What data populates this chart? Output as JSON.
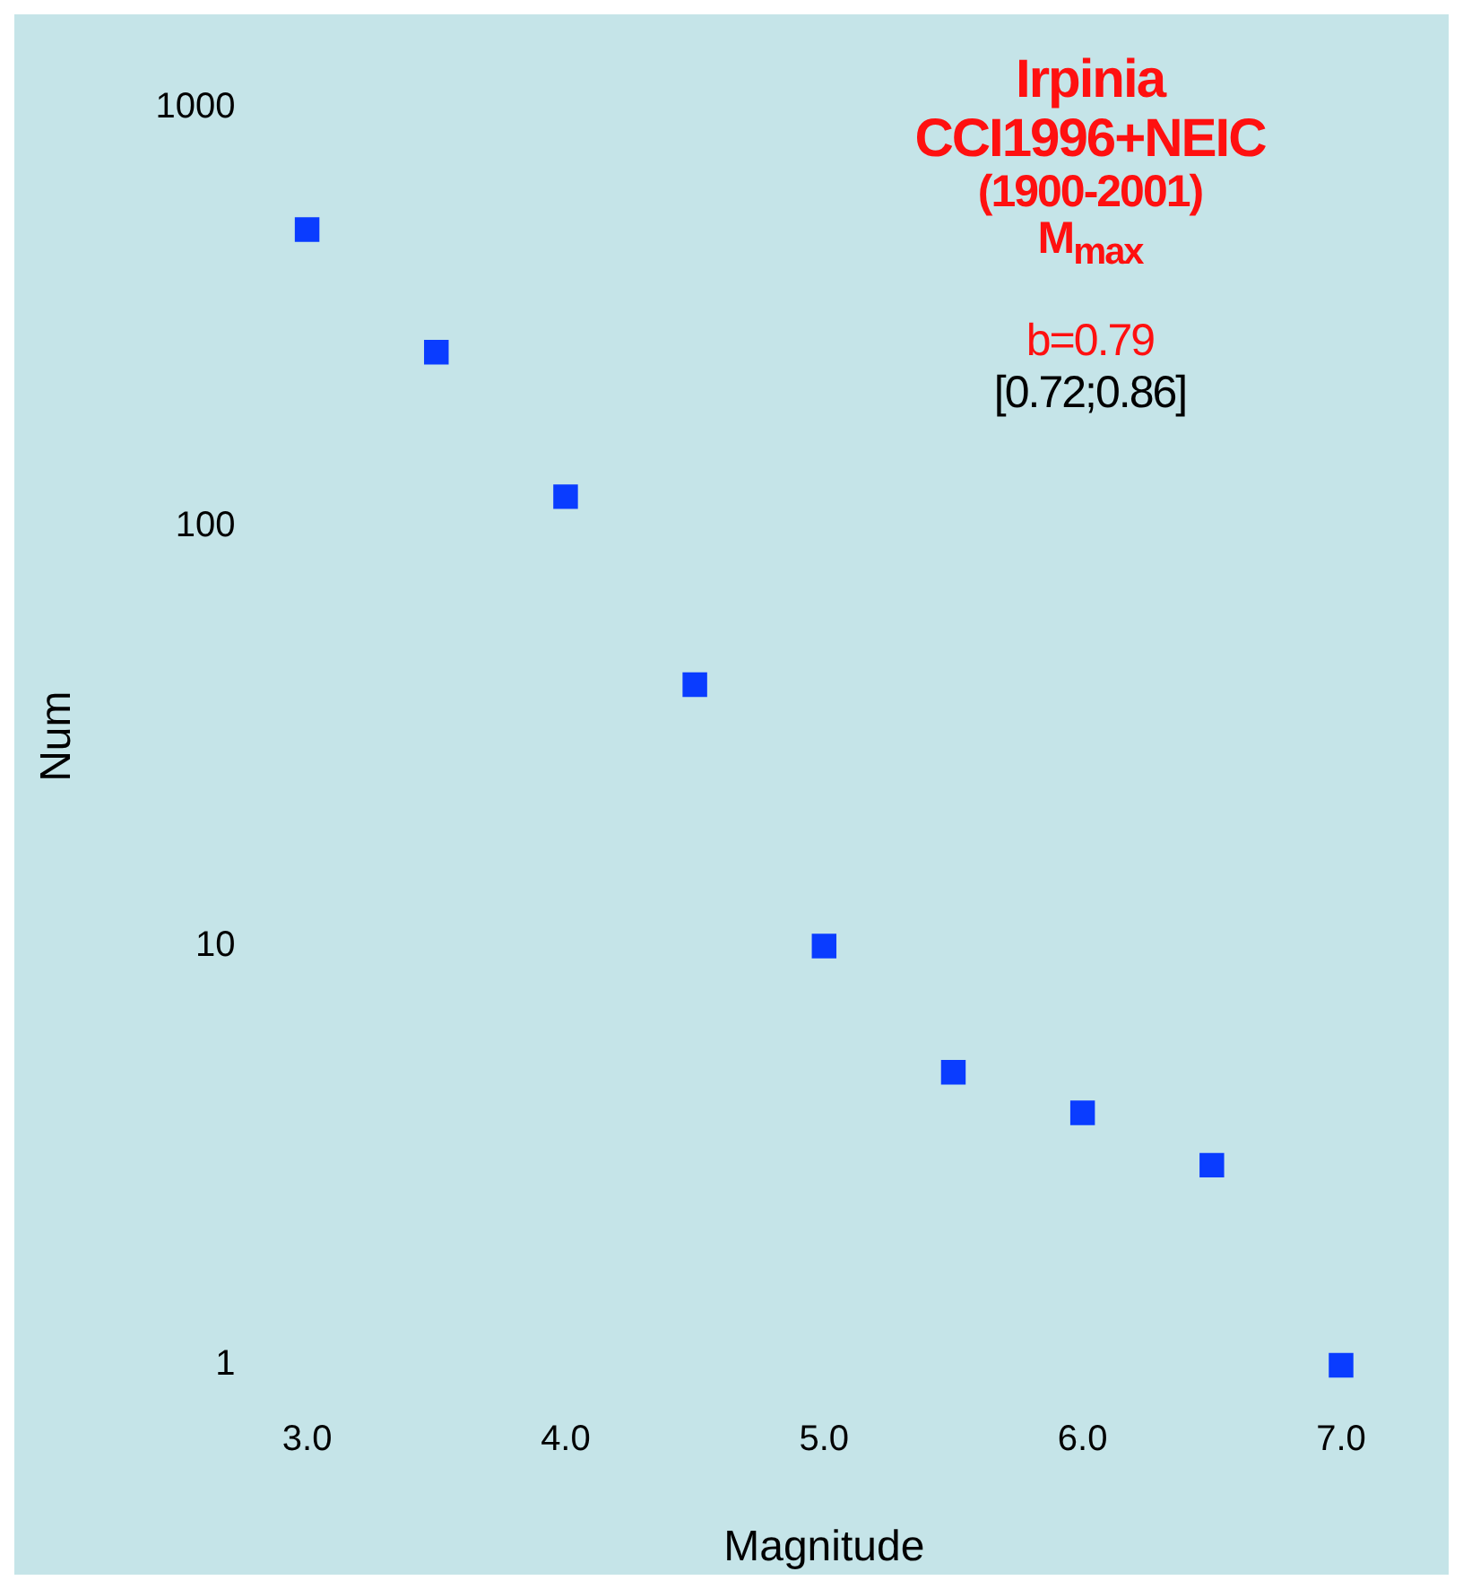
{
  "chart_data": {
    "type": "scatter",
    "title": "Irpinia",
    "annotations": [
      "CCI1996+NEIC",
      "(1900-2001)",
      "M$_{max}$",
      "b=0.79",
      "[0.72;0.86]"
    ],
    "xlabel": "Magnitude",
    "ylabel": "Num",
    "x": [
      3.0,
      3.5,
      4.0,
      4.5,
      5.0,
      5.5,
      6.0,
      6.5,
      7.0
    ],
    "series": [
      {
        "color": "#0a3cff",
        "values": [
          512,
          261,
          118,
          42,
          10,
          5,
          4,
          3,
          1
        ]
      }
    ],
    "marker": "square",
    "log": "y",
    "grid": false,
    "legend": false,
    "xlim": [
      3,
      7
    ],
    "ylim": [
      1,
      1000
    ],
    "xticks": [
      {
        "value": 3,
        "label": "3.0"
      },
      {
        "value": 4,
        "label": "4.0"
      },
      {
        "value": 5,
        "label": "5.0"
      },
      {
        "value": 6,
        "label": "6.0"
      },
      {
        "value": 7,
        "label": "7.0"
      }
    ],
    "yticks": [
      1,
      10,
      100,
      1000
    ]
  }
}
